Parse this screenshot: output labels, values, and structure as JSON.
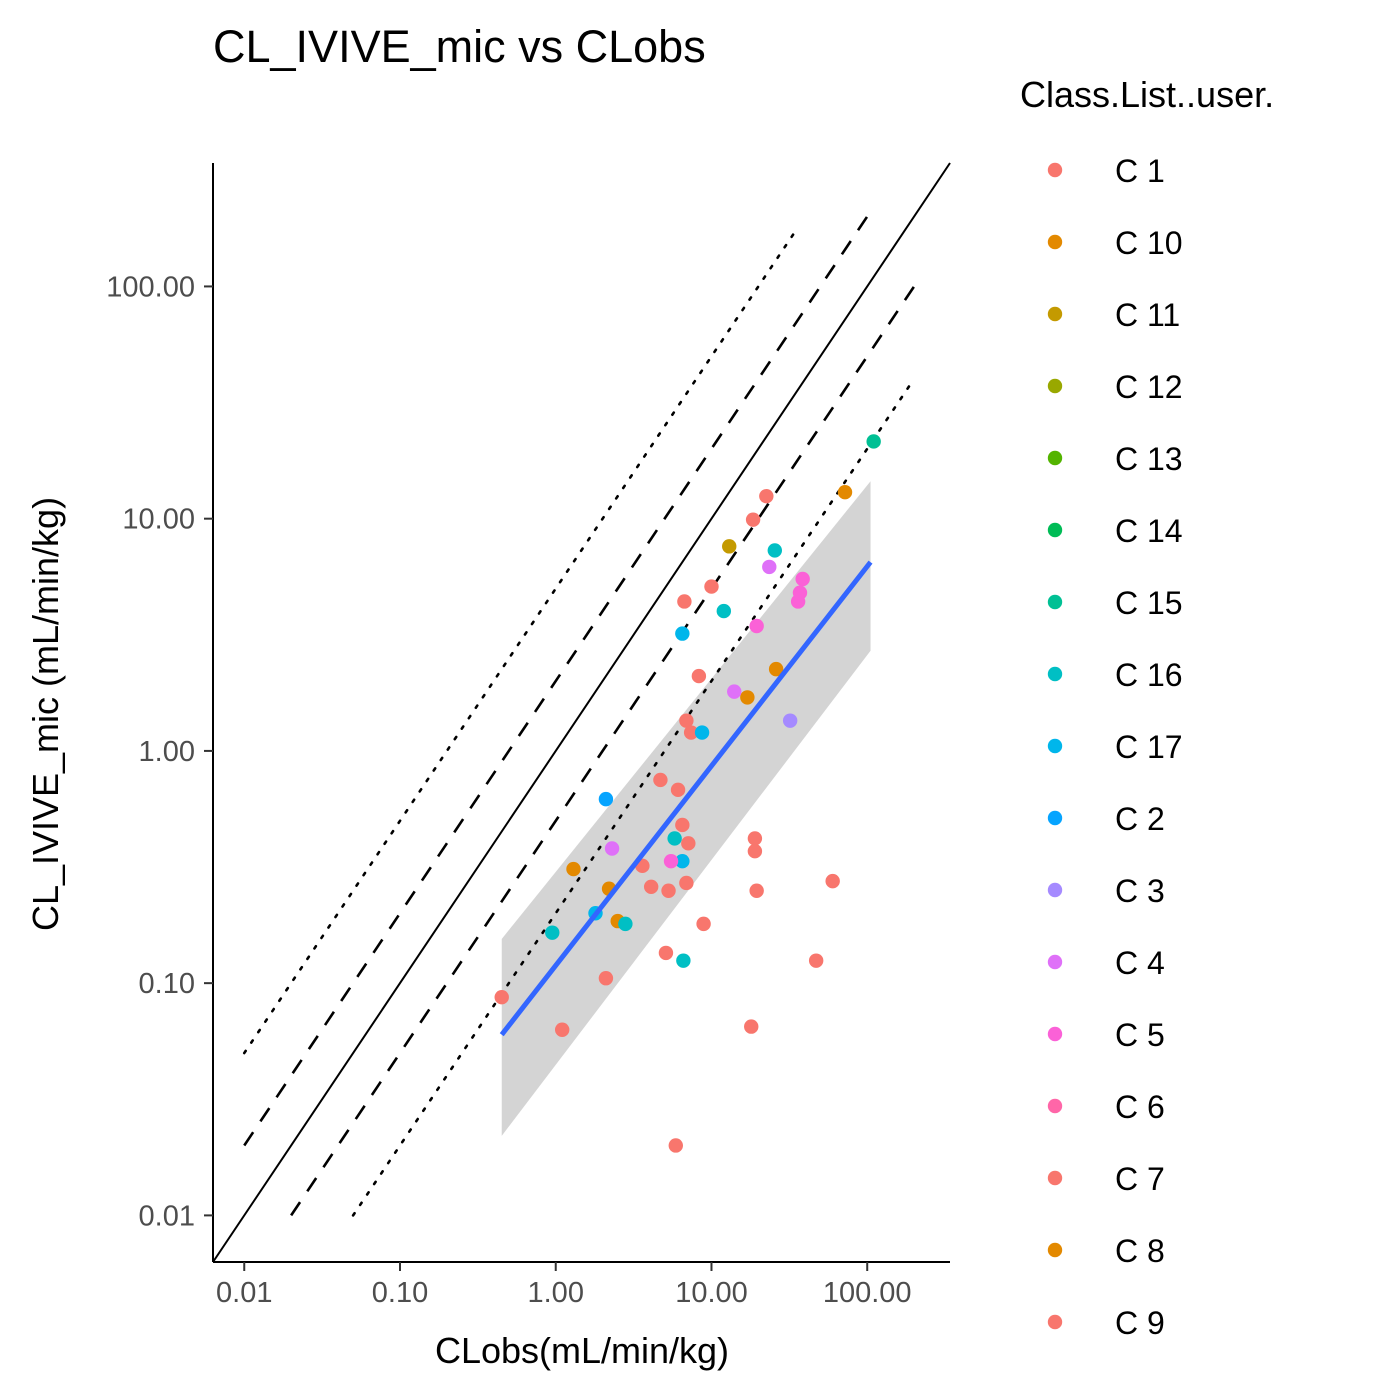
{
  "chart_data": {
    "type": "scatter",
    "title": "CL_IVIVE_mic vs CLobs",
    "xlabel": "CLobs(mL/min/kg)",
    "ylabel": "CL_IVIVE_mic (mL/min/kg)",
    "x_scale": "log10",
    "y_scale": "log10",
    "xlim": [
      0.0063,
      340
    ],
    "ylim": [
      0.0063,
      340
    ],
    "x_ticks": [
      0.01,
      0.1,
      1,
      10,
      100
    ],
    "x_tick_labels": [
      "0.01",
      "0.10",
      "1.00",
      "10.00",
      "100.00"
    ],
    "y_ticks": [
      0.01,
      0.1,
      1,
      10,
      100
    ],
    "y_tick_labels": [
      "0.01",
      "0.10",
      "1.00",
      "10.00",
      "100.00"
    ],
    "grid": false,
    "legend": {
      "title": "Class.List..user.",
      "position": "right",
      "entries": [
        {
          "label": "C 1",
          "color": "#F8766D"
        },
        {
          "label": "C 10",
          "color": "#E38900"
        },
        {
          "label": "C 11",
          "color": "#C49A00"
        },
        {
          "label": "C 12",
          "color": "#99A800"
        },
        {
          "label": "C 13",
          "color": "#53B400"
        },
        {
          "label": "C 14",
          "color": "#00BC56"
        },
        {
          "label": "C 15",
          "color": "#00C094"
        },
        {
          "label": "C 16",
          "color": "#00BFC4"
        },
        {
          "label": "C 17",
          "color": "#00B6EB"
        },
        {
          "label": "C 2",
          "color": "#06A4FF"
        },
        {
          "label": "C 3",
          "color": "#A58AFF"
        },
        {
          "label": "C 4",
          "color": "#DF70F8"
        },
        {
          "label": "C 5",
          "color": "#FB61D7"
        },
        {
          "label": "C 6",
          "color": "#FF66A8"
        },
        {
          "label": "C 7",
          "color": "#F8766D"
        },
        {
          "label": "C 8",
          "color": "#E38900"
        },
        {
          "label": "C 9",
          "color": "#F8766D"
        }
      ]
    },
    "reference_lines": [
      {
        "name": "identity",
        "style": "solid",
        "factor": 1,
        "x_range": [
          0.0063,
          340
        ]
      },
      {
        "name": "2-fold upper",
        "style": "dashed",
        "factor": 2,
        "x_range": [
          0.01,
          100
        ]
      },
      {
        "name": "2-fold lower",
        "style": "dashed",
        "factor": 0.5,
        "x_range": [
          0.02,
          200
        ]
      },
      {
        "name": "5-fold upper",
        "style": "dotted",
        "factor": 5,
        "x_range": [
          0.01,
          35
        ]
      },
      {
        "name": "5-fold lower",
        "style": "dotted",
        "factor": 0.2,
        "x_range": [
          0.05,
          200
        ]
      }
    ],
    "regression": {
      "color": "#3366FF",
      "x_range": [
        0.45,
        105
      ],
      "y_at_ends": [
        0.06,
        6.5
      ],
      "ci_lower": [
        0.022,
        2.7
      ],
      "ci_upper": [
        0.155,
        14.5
      ],
      "ci_color": "#CCCCCC"
    },
    "points": [
      {
        "x": 0.45,
        "y": 0.087,
        "color": "#F8766D"
      },
      {
        "x": 1.1,
        "y": 0.063,
        "color": "#F8766D"
      },
      {
        "x": 2.1,
        "y": 0.105,
        "color": "#F8766D"
      },
      {
        "x": 3.6,
        "y": 0.32,
        "color": "#F8766D"
      },
      {
        "x": 4.1,
        "y": 0.26,
        "color": "#F8766D"
      },
      {
        "x": 4.7,
        "y": 0.75,
        "color": "#F8766D"
      },
      {
        "x": 5.1,
        "y": 0.135,
        "color": "#F8766D"
      },
      {
        "x": 5.3,
        "y": 0.25,
        "color": "#F8766D"
      },
      {
        "x": 5.9,
        "y": 0.02,
        "color": "#F8766D"
      },
      {
        "x": 6.1,
        "y": 0.68,
        "color": "#F8766D"
      },
      {
        "x": 6.5,
        "y": 0.48,
        "color": "#F8766D"
      },
      {
        "x": 6.7,
        "y": 4.4,
        "color": "#F8766D"
      },
      {
        "x": 6.9,
        "y": 1.35,
        "color": "#F8766D"
      },
      {
        "x": 6.9,
        "y": 0.27,
        "color": "#F8766D"
      },
      {
        "x": 7.1,
        "y": 0.4,
        "color": "#F8766D"
      },
      {
        "x": 7.4,
        "y": 1.2,
        "color": "#F8766D"
      },
      {
        "x": 8.3,
        "y": 2.1,
        "color": "#F8766D"
      },
      {
        "x": 8.9,
        "y": 0.18,
        "color": "#F8766D"
      },
      {
        "x": 10.0,
        "y": 5.1,
        "color": "#F8766D"
      },
      {
        "x": 18.0,
        "y": 0.065,
        "color": "#F8766D"
      },
      {
        "x": 18.5,
        "y": 9.9,
        "color": "#F8766D"
      },
      {
        "x": 19.0,
        "y": 0.42,
        "color": "#F8766D"
      },
      {
        "x": 19.0,
        "y": 0.37,
        "color": "#F8766D"
      },
      {
        "x": 19.5,
        "y": 0.25,
        "color": "#F8766D"
      },
      {
        "x": 22.5,
        "y": 12.5,
        "color": "#F8766D"
      },
      {
        "x": 47.0,
        "y": 0.125,
        "color": "#F8766D"
      },
      {
        "x": 60.0,
        "y": 0.275,
        "color": "#F8766D"
      },
      {
        "x": 1.3,
        "y": 0.31,
        "color": "#E38900"
      },
      {
        "x": 2.2,
        "y": 0.255,
        "color": "#E38900"
      },
      {
        "x": 2.5,
        "y": 0.185,
        "color": "#E38900"
      },
      {
        "x": 17.0,
        "y": 1.7,
        "color": "#E38900"
      },
      {
        "x": 26.0,
        "y": 2.25,
        "color": "#E38900"
      },
      {
        "x": 72.0,
        "y": 13.0,
        "color": "#E38900"
      },
      {
        "x": 13.0,
        "y": 7.6,
        "color": "#C49A00"
      },
      {
        "x": 110.0,
        "y": 21.5,
        "color": "#00C094"
      },
      {
        "x": 0.95,
        "y": 0.165,
        "color": "#00BFC4"
      },
      {
        "x": 2.8,
        "y": 0.18,
        "color": "#00BFC4"
      },
      {
        "x": 5.8,
        "y": 0.42,
        "color": "#00BFC4"
      },
      {
        "x": 6.6,
        "y": 0.125,
        "color": "#00BFC4"
      },
      {
        "x": 12.0,
        "y": 4.0,
        "color": "#00BFC4"
      },
      {
        "x": 25.5,
        "y": 7.3,
        "color": "#00BFC4"
      },
      {
        "x": 1.8,
        "y": 0.2,
        "color": "#00B6EB"
      },
      {
        "x": 6.5,
        "y": 0.335,
        "color": "#00B6EB"
      },
      {
        "x": 6.5,
        "y": 3.2,
        "color": "#00B6EB"
      },
      {
        "x": 8.7,
        "y": 1.2,
        "color": "#00B6EB"
      },
      {
        "x": 2.1,
        "y": 0.62,
        "color": "#06A4FF"
      },
      {
        "x": 32.0,
        "y": 1.35,
        "color": "#A58AFF"
      },
      {
        "x": 14.0,
        "y": 1.8,
        "color": "#DF70F8"
      },
      {
        "x": 23.5,
        "y": 6.2,
        "color": "#DF70F8"
      },
      {
        "x": 2.3,
        "y": 0.38,
        "color": "#DF70F8"
      },
      {
        "x": 5.5,
        "y": 0.335,
        "color": "#FB61D7"
      },
      {
        "x": 19.5,
        "y": 3.45,
        "color": "#FB61D7"
      },
      {
        "x": 36.0,
        "y": 4.4,
        "color": "#FB61D7"
      },
      {
        "x": 37.0,
        "y": 4.8,
        "color": "#FB61D7"
      },
      {
        "x": 38.5,
        "y": 5.5,
        "color": "#FB61D7"
      }
    ]
  }
}
